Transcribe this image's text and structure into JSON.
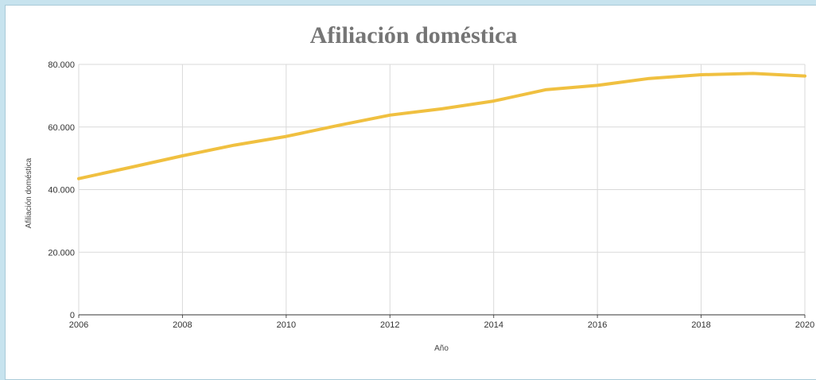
{
  "chart_data": {
    "type": "line",
    "title": "Afiliación doméstica",
    "xlabel": "Año",
    "ylabel": "Afiliación doméstica",
    "xlim": [
      2006,
      2020
    ],
    "ylim": [
      0,
      80000
    ],
    "x_ticks": [
      2006,
      2008,
      2010,
      2012,
      2014,
      2016,
      2018,
      2020
    ],
    "x_tick_labels": [
      "2006",
      "2008",
      "2010",
      "2012",
      "2014",
      "2016",
      "2018",
      "2020"
    ],
    "y_ticks": [
      0,
      20000,
      40000,
      60000,
      80000
    ],
    "y_tick_labels": [
      "0",
      "20.000",
      "40.000",
      "60.000",
      "80.000"
    ],
    "grid": true,
    "legend": "none",
    "series": [
      {
        "color": "#f0c040",
        "x": [
          2006,
          2007,
          2008,
          2009,
          2010,
          2011,
          2012,
          2013,
          2014,
          2015,
          2016,
          2017,
          2018,
          2019,
          2020
        ],
        "values": [
          43500,
          47100,
          50800,
          54200,
          57000,
          60500,
          63800,
          65800,
          68300,
          71900,
          73300,
          75500,
          76700,
          77100,
          76300
        ]
      }
    ]
  }
}
